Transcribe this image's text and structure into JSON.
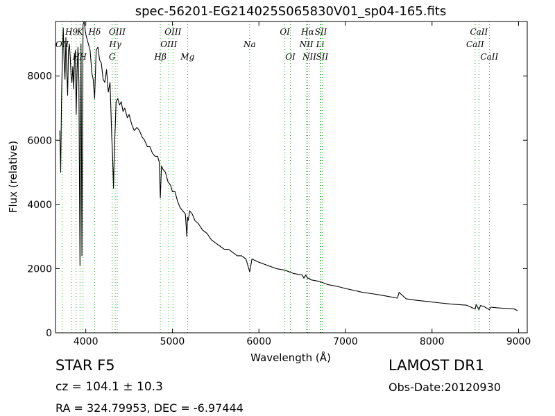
{
  "chart_data": {
    "type": "line",
    "title": "spec-56201-EG214025S065830V01_sp04-165.fits",
    "xlabel": "Wavelength (Å)",
    "ylabel": "Flux (relative)",
    "xlim": [
      3650,
      9100
    ],
    "ylim": [
      0,
      9700
    ],
    "xticks": [
      4000,
      5000,
      6000,
      7000,
      8000,
      9000
    ],
    "yticks": [
      0,
      2000,
      4000,
      6000,
      8000
    ],
    "line_color": "#000000",
    "marker_color": "#22aa22",
    "series": [
      {
        "x": [
          3700,
          3710,
          3720,
          3730,
          3740,
          3750,
          3760,
          3770,
          3780,
          3790,
          3800,
          3810,
          3820,
          3830,
          3840,
          3850,
          3860,
          3870,
          3880,
          3889,
          3900,
          3910,
          3920,
          3933,
          3945,
          3955,
          3968,
          3980,
          3990,
          4000,
          4010,
          4030,
          4050,
          4070,
          4085,
          4102,
          4120,
          4140,
          4160,
          4180,
          4200,
          4220,
          4240,
          4260,
          4280,
          4300,
          4310,
          4320,
          4330,
          4340,
          4350,
          4370,
          4390,
          4410,
          4430,
          4450,
          4480,
          4500,
          4530,
          4560,
          4590,
          4620,
          4650,
          4680,
          4710,
          4740,
          4770,
          4800,
          4830,
          4850,
          4861,
          4875,
          4890,
          4920,
          4950,
          4980,
          5000,
          5030,
          5060,
          5090,
          5120,
          5150,
          5167,
          5175,
          5183,
          5200,
          5230,
          5260,
          5300,
          5350,
          5400,
          5450,
          5500,
          5550,
          5600,
          5650,
          5700,
          5750,
          5800,
          5850,
          5893,
          5920,
          6000,
          6100,
          6200,
          6300,
          6400,
          6500,
          6520,
          6540,
          6563,
          6580,
          6600,
          6700,
          6800,
          6900,
          7000,
          7100,
          7200,
          7300,
          7400,
          7500,
          7600,
          7620,
          7700,
          7800,
          7900,
          8000,
          8100,
          8200,
          8300,
          8400,
          8498,
          8510,
          8542,
          8560,
          8600,
          8662,
          8680,
          8750,
          8850,
          8950,
          8990
        ],
        "y": [
          6300,
          5000,
          7300,
          8700,
          9500,
          8400,
          7900,
          9200,
          8200,
          7400,
          8800,
          9000,
          8600,
          8000,
          7800,
          8300,
          7600,
          8500,
          8800,
          6800,
          8200,
          8900,
          7800,
          2100,
          9000,
          2400,
          9600,
          9700,
          9500,
          9300,
          9200,
          9000,
          8800,
          8100,
          7900,
          7300,
          8800,
          8900,
          8500,
          8400,
          7900,
          7800,
          8200,
          7500,
          7800,
          6100,
          5500,
          4500,
          5700,
          6400,
          7200,
          7300,
          7100,
          7200,
          6900,
          7000,
          6700,
          6800,
          6500,
          6300,
          6400,
          6300,
          6100,
          6000,
          5800,
          5800,
          5600,
          5500,
          5500,
          5300,
          4200,
          5200,
          5100,
          5000,
          4700,
          4600,
          4400,
          4400,
          4100,
          3900,
          3800,
          3700,
          3000,
          3600,
          3500,
          3800,
          3700,
          3500,
          3400,
          3200,
          3100,
          2900,
          2800,
          2700,
          2600,
          2600,
          2500,
          2400,
          2400,
          2300,
          1900,
          2300,
          2200,
          2100,
          2000,
          1950,
          1850,
          1800,
          1700,
          1800,
          1700,
          1700,
          1650,
          1600,
          1500,
          1450,
          1380,
          1320,
          1260,
          1220,
          1180,
          1130,
          1080,
          1260,
          1060,
          1020,
          990,
          960,
          930,
          900,
          880,
          860,
          740,
          880,
          720,
          850,
          820,
          720,
          800,
          780,
          760,
          740,
          690
        ]
      }
    ],
    "lines": [
      {
        "name": "OII",
        "x": 3727,
        "row": 2
      },
      {
        "name": "H9",
        "x": 3835,
        "row": 1
      },
      {
        "name": "H",
        "x": 3889,
        "row": 3
      },
      {
        "name": "K",
        "x": 3933,
        "row": 1
      },
      {
        "name": "H",
        "x": 3968,
        "row": 3
      },
      {
        "name": "Hδ",
        "x": 4102,
        "row": 1
      },
      {
        "name": "G",
        "x": 4305,
        "row": 3
      },
      {
        "name": "Hγ",
        "x": 4340,
        "row": 2
      },
      {
        "name": "OIII",
        "x": 4363,
        "row": 1
      },
      {
        "name": "Hβ",
        "x": 4861,
        "row": 3
      },
      {
        "name": "OIII",
        "x": 4959,
        "row": 2
      },
      {
        "name": "OIII",
        "x": 5007,
        "row": 1
      },
      {
        "name": "Mg",
        "x": 5175,
        "row": 3
      },
      {
        "name": "Na",
        "x": 5893,
        "row": 2
      },
      {
        "name": "OI",
        "x": 6300,
        "row": 1
      },
      {
        "name": "OI",
        "x": 6363,
        "row": 3
      },
      {
        "name": "NII",
        "x": 6548,
        "row": 2
      },
      {
        "name": "Hα",
        "x": 6563,
        "row": 1
      },
      {
        "name": "NII",
        "x": 6583,
        "row": 3
      },
      {
        "name": "Li",
        "x": 6708,
        "row": 2
      },
      {
        "name": "SII",
        "x": 6716,
        "row": 1
      },
      {
        "name": "SII",
        "x": 6731,
        "row": 3
      },
      {
        "name": "CaII",
        "x": 8498,
        "row": 2
      },
      {
        "name": "CaII",
        "x": 8542,
        "row": 1
      },
      {
        "name": "CaII",
        "x": 8662,
        "row": 3
      }
    ]
  },
  "info": {
    "class_label": "STAR   F5",
    "cz": "cz = 104.1 ± 10.3",
    "coords": "RA = 324.79953, DEC = -6.97444",
    "survey": "LAMOST DR1",
    "obs_date": "Obs-Date:20120930"
  }
}
